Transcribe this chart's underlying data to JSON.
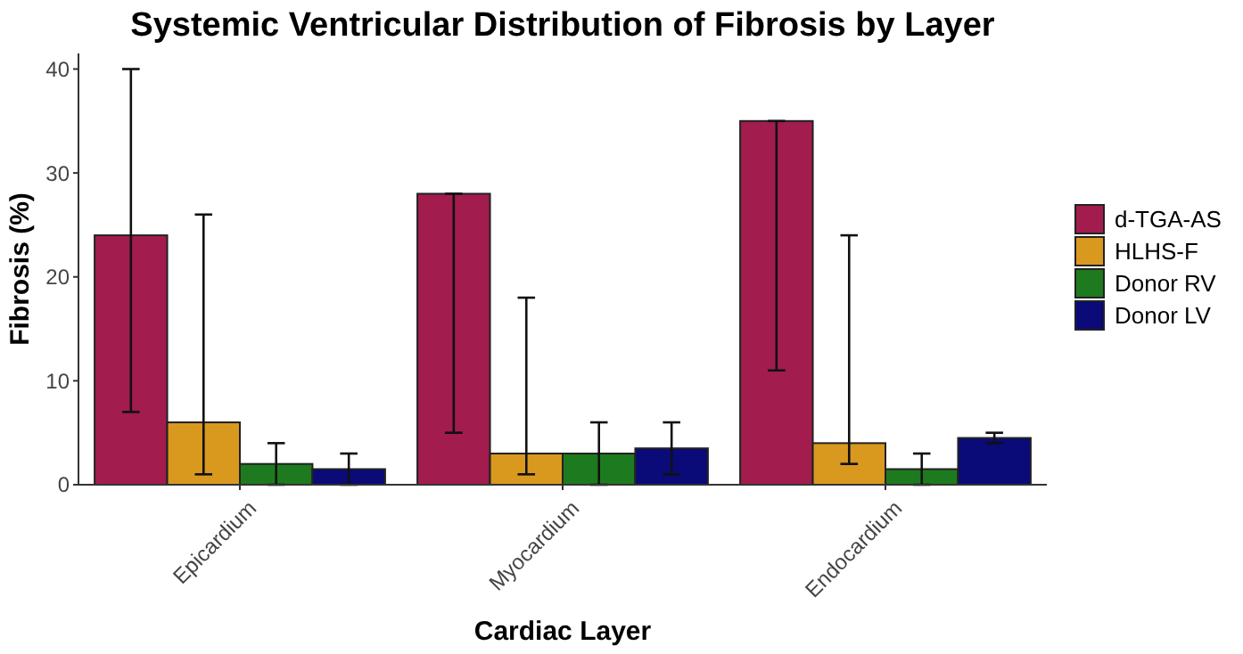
{
  "chart_data": {
    "type": "bar",
    "title": "Systemic Ventricular Distribution of Fibrosis by Layer",
    "xlabel": "Cardiac Layer",
    "ylabel": "Fibrosis (%)",
    "categories": [
      "Epicardium",
      "Myocardium",
      "Endocardium"
    ],
    "series": [
      {
        "name": "d-TGA-AS",
        "color": "#a21c4e",
        "values": [
          24,
          28,
          35
        ],
        "errors": [
          [
            7,
            40
          ],
          [
            5,
            28
          ],
          [
            11,
            35
          ]
        ]
      },
      {
        "name": "HLHS-F",
        "color": "#d9991f",
        "values": [
          6,
          3,
          4
        ],
        "errors": [
          [
            1,
            26
          ],
          [
            1,
            18
          ],
          [
            2,
            24
          ]
        ]
      },
      {
        "name": "Donor RV",
        "color": "#1e7a1e",
        "values": [
          2,
          3,
          1.5
        ],
        "errors": [
          [
            0,
            4
          ],
          [
            0,
            6
          ],
          [
            0,
            3
          ]
        ]
      },
      {
        "name": "Donor LV",
        "color": "#0a0a78",
        "values": [
          1.5,
          3.5,
          4.5
        ],
        "errors": [
          [
            0,
            3
          ],
          [
            1,
            6
          ],
          [
            4,
            5
          ]
        ]
      }
    ],
    "ylim": [
      0,
      41.5
    ],
    "yticks": [
      0,
      10,
      20,
      30,
      40
    ],
    "grid": false,
    "legend": "right"
  }
}
